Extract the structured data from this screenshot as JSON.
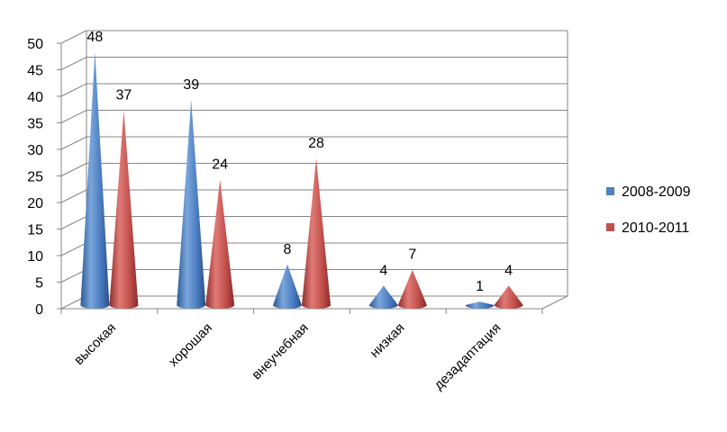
{
  "chart_data": {
    "type": "bar",
    "style": "3d-cone",
    "categories": [
      "высокая",
      "хорошая",
      "внеучебная",
      "низкая",
      "дезадаптация"
    ],
    "series": [
      {
        "name": "2008-2009",
        "values": [
          48,
          39,
          8,
          4,
          1
        ],
        "color": "#4f81bd"
      },
      {
        "name": "2010-2011",
        "values": [
          37,
          24,
          28,
          7,
          4
        ],
        "color": "#c0504d"
      }
    ],
    "ylim": [
      0,
      50
    ],
    "yticks": [
      0,
      5,
      10,
      15,
      20,
      25,
      30,
      35,
      40,
      45,
      50
    ],
    "grid": true,
    "legend": "right",
    "data_labels": true
  }
}
